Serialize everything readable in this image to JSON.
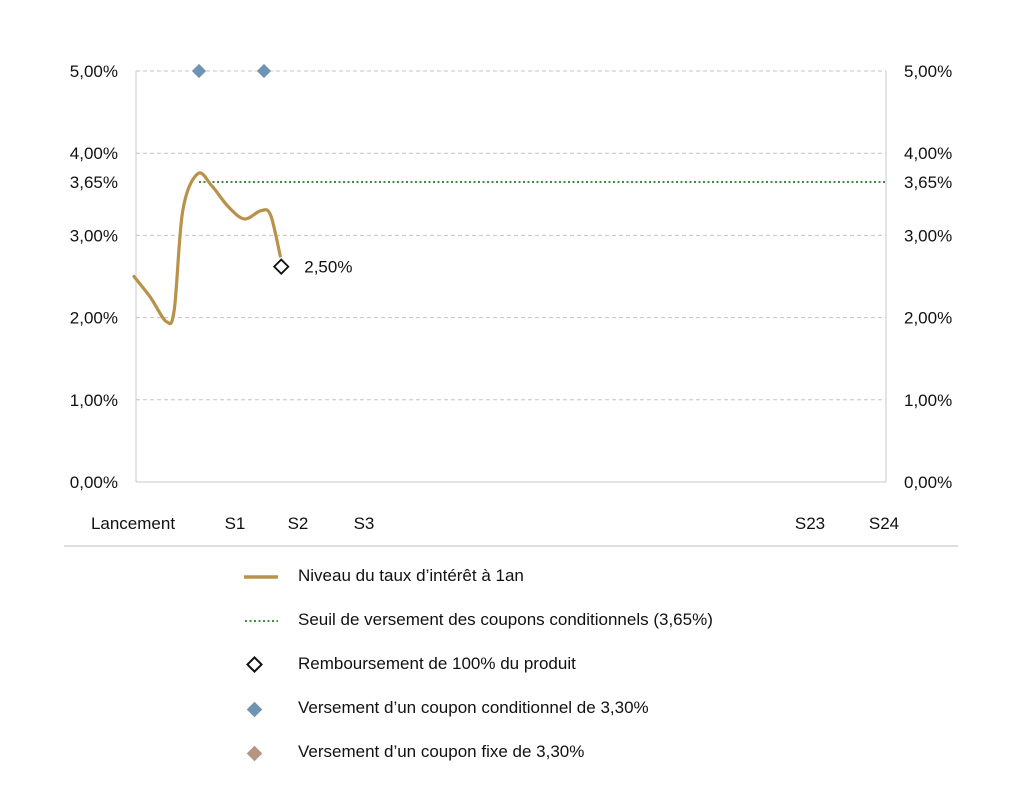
{
  "chart_data": {
    "type": "line",
    "categories": [
      "Lancement",
      "S1",
      "S2",
      "S3",
      "S23",
      "S24"
    ],
    "y_ticks": [
      "0,00%",
      "1,00%",
      "2,00%",
      "3,00%",
      "3,65%",
      "4,00%",
      "5,00%"
    ],
    "y_tick_values": [
      0,
      1,
      2,
      3,
      3.65,
      4,
      5
    ],
    "ylim": [
      0,
      5
    ],
    "grid": true,
    "series": [
      {
        "name": "Niveau du taux d’intérêt à 1an",
        "color": "#b8924a",
        "points": [
          {
            "x": 0,
            "y": 2.5
          },
          {
            "x": 0.25,
            "y": 2.25
          },
          {
            "x": 0.5,
            "y": 1.95
          },
          {
            "x": 0.62,
            "y": 2.1
          },
          {
            "x": 0.75,
            "y": 3.3
          },
          {
            "x": 0.98,
            "y": 3.75
          },
          {
            "x": 1.2,
            "y": 3.6
          },
          {
            "x": 1.45,
            "y": 3.35
          },
          {
            "x": 1.7,
            "y": 3.2
          },
          {
            "x": 1.95,
            "y": 3.3
          },
          {
            "x": 2.1,
            "y": 3.25
          },
          {
            "x": 2.25,
            "y": 2.75
          }
        ]
      },
      {
        "name": "Seuil de versement des coupons conditionnels (3,65%)",
        "color": "#3f8f3f",
        "x_start": 1,
        "value": 3.65
      }
    ],
    "markers": {
      "conditional_coupons": {
        "name": "Versement d’un coupon conditionnel de 3,30%",
        "color": "#6f94b3",
        "x": [
          1,
          2
        ],
        "y": 5
      },
      "redemption": {
        "name": "Remboursement de 100% du produit",
        "x": 2.25,
        "y": 2.62,
        "label": "2,50%"
      },
      "fixed_coupon": {
        "name": "Versement d’un coupon fixe de 3,30%",
        "color": "#b39582"
      }
    }
  },
  "legend": {
    "items": [
      {
        "label": "Niveau du taux d’intérêt à 1an"
      },
      {
        "label": "Seuil de versement des coupons conditionnels (3,65%)"
      },
      {
        "label": "Remboursement de 100% du produit"
      },
      {
        "label": "Versement d’un coupon conditionnel de 3,30%"
      },
      {
        "label": "Versement d’un coupon fixe de 3,30%"
      }
    ]
  }
}
